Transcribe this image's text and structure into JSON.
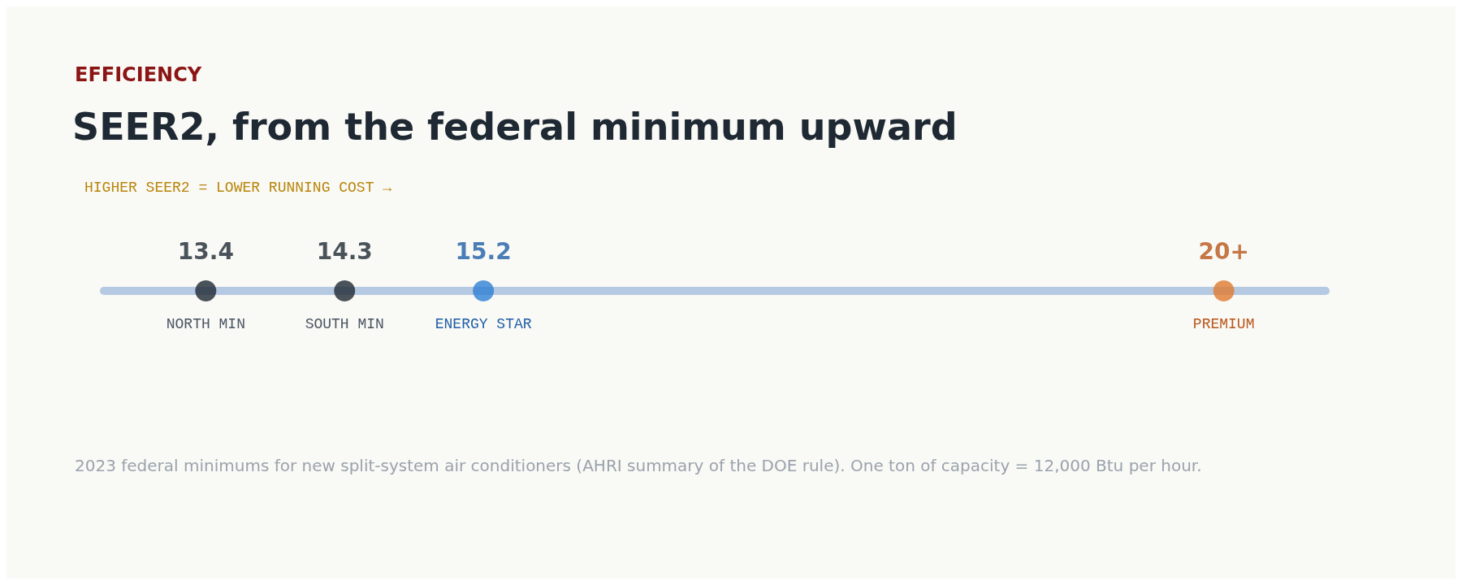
{
  "chart_data": {
    "type": "other",
    "title": "SEER2, from the federal minimum upward",
    "subtitle": "HIGHER SEER2 = LOWER RUNNING COST →",
    "annotations": [
      "EFFICIENCY",
      "2023 federal minimums for new split-system air conditioners (AHRI summary of the DOE rule). One ton of capacity = 12,000 Btu per hour."
    ],
    "categories": [
      "NORTH MIN",
      "SOUTH MIN",
      "ENERGY STAR",
      "PREMIUM"
    ],
    "values": [
      13.4,
      14.3,
      15.2,
      20
    ],
    "value_labels": [
      "13.4",
      "14.3",
      "15.2",
      "20+"
    ],
    "colors": [
      "#1f2933",
      "#1f2933",
      "#2f7fd6",
      "#e07b30"
    ]
  }
}
